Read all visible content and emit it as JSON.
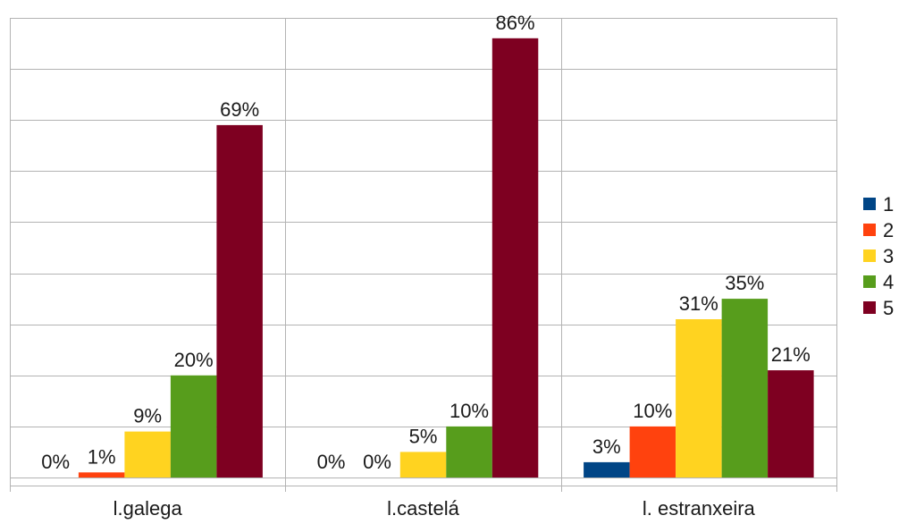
{
  "chart_data": {
    "type": "bar",
    "categories": [
      "l.galega",
      "l.castelá",
      "l. estranxeira"
    ],
    "series": [
      {
        "name": "1",
        "color": "#004586",
        "values": [
          0,
          0,
          3
        ]
      },
      {
        "name": "2",
        "color": "#ff420e",
        "values": [
          1,
          0,
          10
        ]
      },
      {
        "name": "3",
        "color": "#ffd320",
        "values": [
          9,
          5,
          31
        ]
      },
      {
        "name": "4",
        "color": "#579d1c",
        "values": [
          20,
          10,
          35
        ]
      },
      {
        "name": "5",
        "color": "#7e0021",
        "values": [
          69,
          86,
          21
        ]
      }
    ],
    "value_labels": [
      [
        "0%",
        "0%",
        "3%"
      ],
      [
        "1%",
        "0%",
        "10%"
      ],
      [
        "9%",
        "5%",
        "31%"
      ],
      [
        "20%",
        "10%",
        "35%"
      ],
      [
        "69%",
        "86%",
        "21%"
      ]
    ],
    "ylim": [
      0,
      90
    ],
    "y_gridlines_step": 10,
    "grid": true,
    "legend_position": "right"
  }
}
